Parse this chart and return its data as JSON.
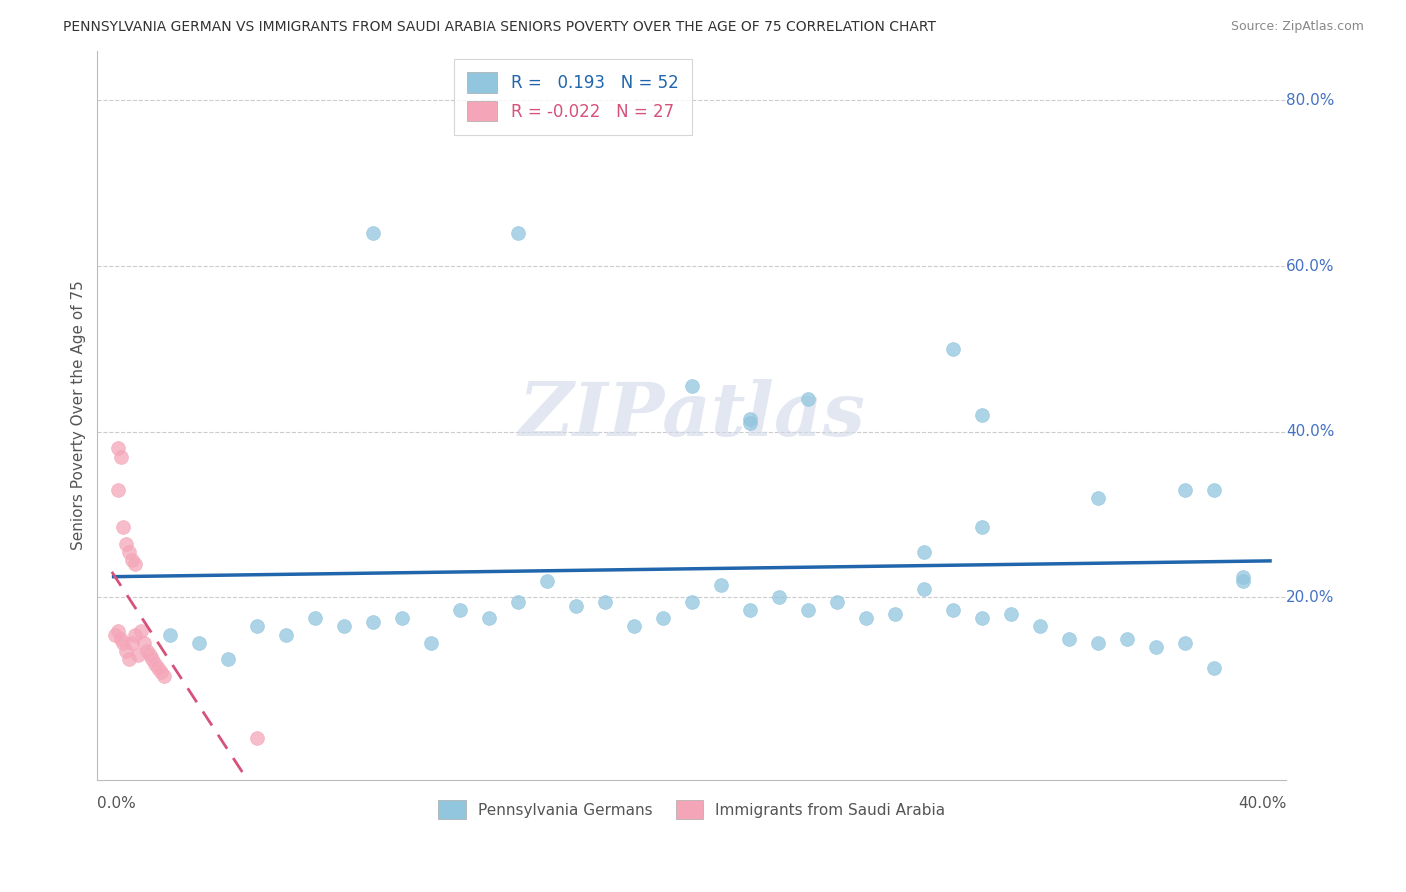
{
  "title": "PENNSYLVANIA GERMAN VS IMMIGRANTS FROM SAUDI ARABIA SENIORS POVERTY OVER THE AGE OF 75 CORRELATION CHART",
  "source": "Source: ZipAtlas.com",
  "ylabel": "Seniors Poverty Over the Age of 75",
  "r_blue": 0.193,
  "n_blue": 52,
  "r_pink": -0.022,
  "n_pink": 27,
  "legend_label_blue": "Pennsylvania Germans",
  "legend_label_pink": "Immigrants from Saudi Arabia",
  "blue_color": "#92c5de",
  "pink_color": "#f4a6b8",
  "blue_line_color": "#2166ac",
  "pink_line_color": "#d6527a",
  "background_color": "#ffffff",
  "blue_scatter_x": [
    0.02,
    0.03,
    0.04,
    0.05,
    0.06,
    0.07,
    0.08,
    0.09,
    0.1,
    0.11,
    0.12,
    0.13,
    0.14,
    0.15,
    0.16,
    0.17,
    0.18,
    0.19,
    0.2,
    0.21,
    0.22,
    0.23,
    0.24,
    0.25,
    0.26,
    0.27,
    0.28,
    0.29,
    0.3,
    0.31,
    0.32,
    0.33,
    0.34,
    0.35,
    0.36,
    0.37,
    0.38,
    0.39,
    0.09,
    0.14,
    0.2,
    0.22,
    0.22,
    0.24,
    0.29,
    0.3,
    0.37,
    0.38,
    0.28,
    0.3,
    0.34,
    0.39
  ],
  "blue_scatter_y": [
    0.155,
    0.145,
    0.125,
    0.165,
    0.155,
    0.175,
    0.165,
    0.17,
    0.175,
    0.145,
    0.185,
    0.175,
    0.195,
    0.22,
    0.19,
    0.195,
    0.165,
    0.175,
    0.195,
    0.215,
    0.185,
    0.2,
    0.185,
    0.195,
    0.175,
    0.18,
    0.21,
    0.185,
    0.175,
    0.18,
    0.165,
    0.15,
    0.145,
    0.15,
    0.14,
    0.145,
    0.115,
    0.22,
    0.64,
    0.64,
    0.455,
    0.415,
    0.41,
    0.44,
    0.5,
    0.42,
    0.33,
    0.33,
    0.255,
    0.285,
    0.32,
    0.225
  ],
  "pink_scatter_x": [
    0.001,
    0.002,
    0.003,
    0.004,
    0.005,
    0.006,
    0.007,
    0.008,
    0.009,
    0.01,
    0.011,
    0.012,
    0.013,
    0.014,
    0.015,
    0.016,
    0.017,
    0.018,
    0.002,
    0.003,
    0.004,
    0.005,
    0.006,
    0.007,
    0.008,
    0.05,
    0.002
  ],
  "pink_scatter_y": [
    0.155,
    0.16,
    0.15,
    0.145,
    0.135,
    0.125,
    0.145,
    0.155,
    0.13,
    0.16,
    0.145,
    0.135,
    0.13,
    0.125,
    0.12,
    0.115,
    0.11,
    0.105,
    0.38,
    0.37,
    0.285,
    0.265,
    0.255,
    0.245,
    0.24,
    0.03,
    0.33
  ]
}
